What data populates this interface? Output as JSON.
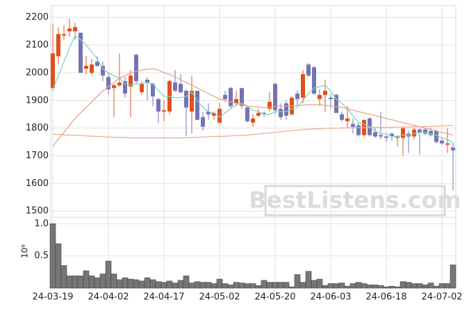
{
  "chart_data": {
    "type": "candlestick",
    "watermark": "BestListens.com",
    "categories": [
      "24-03-19",
      null,
      null,
      null,
      null,
      null,
      null,
      null,
      null,
      null,
      "24-04-02",
      null,
      null,
      null,
      null,
      null,
      null,
      null,
      null,
      null,
      "24-04-17",
      null,
      null,
      null,
      null,
      null,
      null,
      null,
      null,
      null,
      "24-05-02",
      null,
      null,
      null,
      null,
      null,
      null,
      null,
      null,
      null,
      "24-05-20",
      null,
      null,
      null,
      null,
      null,
      null,
      null,
      null,
      null,
      "24-06-03",
      null,
      null,
      null,
      null,
      null,
      null,
      null,
      null,
      null,
      "24-06-18",
      null,
      null,
      null,
      null,
      null,
      null,
      null,
      null,
      null,
      "24-07-02",
      null,
      null
    ],
    "open": [
      1945,
      2060,
      2135,
      2150,
      2150,
      2145,
      2015,
      2000,
      2040,
      2025,
      1985,
      1945,
      1955,
      1970,
      1950,
      2065,
      1930,
      1975,
      1960,
      1905,
      1860,
      1860,
      1965,
      1960,
      1935,
      1860,
      1935,
      1840,
      1860,
      1845,
      1820,
      1920,
      1945,
      1890,
      1945,
      1875,
      1820,
      1845,
      1855,
      1870,
      1960,
      1870,
      1890,
      1850,
      1925,
      1910,
      2030,
      2020,
      1905,
      1920,
      1910,
      1920,
      1850,
      1825,
      1815,
      1810,
      1775,
      1835,
      1785,
      1775,
      1770,
      1780,
      1765,
      1765,
      1780,
      1770,
      1795,
      1795,
      1790,
      1790,
      1755,
      1740,
      1730
    ],
    "high": [
      2175,
      2165,
      2170,
      2195,
      2180,
      2145,
      2060,
      2050,
      2060,
      2040,
      2000,
      1960,
      2070,
      1985,
      2010,
      2070,
      1970,
      1985,
      1965,
      1910,
      1900,
      1975,
      2010,
      1995,
      1940,
      1990,
      1935,
      1860,
      1890,
      1860,
      1890,
      1935,
      1950,
      1935,
      1945,
      1880,
      1850,
      1870,
      1860,
      1930,
      1965,
      1890,
      1900,
      1915,
      1935,
      2010,
      2035,
      2025,
      1940,
      1975,
      1925,
      1925,
      1860,
      1880,
      1835,
      1820,
      1830,
      1840,
      1800,
      1860,
      1775,
      1785,
      1775,
      1805,
      1790,
      1800,
      1800,
      1800,
      1800,
      1795,
      1765,
      1800,
      1745
    ],
    "low": [
      1935,
      2030,
      2120,
      2130,
      2120,
      2000,
      1995,
      1990,
      2020,
      1970,
      1920,
      1840,
      1950,
      1910,
      1840,
      1960,
      1920,
      1900,
      1880,
      1820,
      1825,
      1850,
      1930,
      1925,
      1770,
      1780,
      1830,
      1790,
      1830,
      1830,
      1815,
      1895,
      1870,
      1880,
      1870,
      1820,
      1805,
      1840,
      1840,
      1860,
      1850,
      1830,
      1830,
      1845,
      1880,
      1890,
      1985,
      1920,
      1880,
      1860,
      1870,
      1855,
      1825,
      1800,
      1780,
      1770,
      1770,
      1770,
      1765,
      1760,
      1750,
      1755,
      1735,
      1700,
      1710,
      1760,
      1705,
      1775,
      1770,
      1745,
      1740,
      1710,
      1575
    ],
    "close": [
      2070,
      2140,
      2140,
      2160,
      2165,
      2000,
      2025,
      2030,
      2025,
      1990,
      1940,
      1955,
      1965,
      1925,
      1990,
      1970,
      1960,
      1965,
      1915,
      1860,
      1865,
      1970,
      1935,
      1930,
      1875,
      1935,
      1830,
      1805,
      1850,
      1855,
      1870,
      1905,
      1880,
      1905,
      1880,
      1825,
      1835,
      1855,
      1850,
      1895,
      1865,
      1840,
      1845,
      1910,
      1905,
      1995,
      1990,
      1925,
      1920,
      1935,
      1905,
      1855,
      1830,
      1835,
      1805,
      1775,
      1830,
      1775,
      1770,
      1770,
      1765,
      1770,
      1770,
      1800,
      1770,
      1795,
      1785,
      1780,
      1775,
      1750,
      1745,
      1745,
      1720
    ],
    "volume": [
      1.0,
      0.69,
      0.35,
      0.19,
      0.19,
      0.19,
      0.27,
      0.19,
      0.16,
      0.22,
      0.42,
      0.22,
      0.13,
      0.16,
      0.14,
      0.13,
      0.11,
      0.16,
      0.13,
      0.1,
      0.09,
      0.11,
      0.08,
      0.12,
      0.19,
      0.08,
      0.1,
      0.09,
      0.09,
      0.07,
      0.14,
      0.07,
      0.05,
      0.09,
      0.08,
      0.07,
      0.07,
      0.04,
      0.12,
      0.09,
      0.09,
      0.09,
      0.09,
      0.02,
      0.21,
      0.09,
      0.26,
      0.12,
      0.14,
      0.04,
      0.07,
      0.07,
      0.08,
      0.03,
      0.07,
      0.09,
      0.07,
      0.05,
      0.05,
      0.04,
      0.02,
      0.03,
      0.02,
      0.1,
      0.09,
      0.07,
      0.07,
      0.05,
      0.08,
      0.03,
      0.07,
      0.07,
      0.36
    ],
    "up_color": "#e0501c",
    "down_color": "#7473b5",
    "volume_color": "#767676",
    "series": [
      {
        "color": "#7fd6be",
        "values": [
          1940,
          1990,
          2040,
          2090,
          2135,
          2120,
          2100,
          2075,
          2050,
          2015,
          2000,
          1990,
          1980,
          1960,
          1955,
          1960,
          1960,
          1965,
          1960,
          1935,
          1915,
          1915,
          1910,
          1910,
          1915,
          1930,
          1900,
          1875,
          1860,
          1855,
          1840,
          1855,
          1870,
          1885,
          1890,
          1880,
          1865,
          1860,
          1850,
          1850,
          1860,
          1860,
          1860,
          1870,
          1875,
          1900,
          1925,
          1945,
          1950,
          1955,
          1935,
          1905,
          1890,
          1870,
          1845,
          1820,
          1815,
          1805,
          1790,
          1780,
          1780,
          1770,
          1770,
          1775,
          1775,
          1780,
          1785,
          1785,
          1780,
          1775,
          1765,
          1760,
          1745
        ]
      },
      {
        "color": "#eaa584",
        "values": [
          1735,
          1760,
          1785,
          1810,
          1835,
          1855,
          1875,
          1895,
          1915,
          1935,
          1950,
          1965,
          1980,
          1990,
          2000,
          2005,
          2010,
          2013,
          2015,
          2010,
          2000,
          1995,
          1985,
          1975,
          1965,
          1955,
          1945,
          1935,
          1925,
          1915,
          1905,
          1900,
          1895,
          1890,
          1885,
          1880,
          1878,
          1876,
          1875,
          1875,
          1878,
          1880,
          1880,
          1880,
          1882,
          1883,
          1885,
          1885,
          1885,
          1883,
          1880,
          1878,
          1875,
          1870,
          1865,
          1860,
          1855,
          1850,
          1845,
          1840,
          1835,
          1830,
          1825,
          1820,
          1815,
          1810,
          1805,
          1800,
          1795,
          1790,
          1785,
          1780,
          1775
        ]
      },
      {
        "color": "#eab094",
        "values": [
          1778,
          1777,
          1776,
          1775,
          1774,
          1773,
          1772,
          1771,
          1770,
          1769,
          1768,
          1767,
          1766,
          1766,
          1765,
          1765,
          1765,
          1765,
          1765,
          1765,
          1765,
          1765,
          1765,
          1765,
          1765,
          1766,
          1767,
          1768,
          1769,
          1770,
          1770,
          1771,
          1772,
          1773,
          1774,
          1775,
          1777,
          1779,
          1781,
          1783,
          1785,
          1787,
          1789,
          1791,
          1793,
          1795,
          1796,
          1797,
          1798,
          1799,
          1800,
          1800,
          1801,
          1801,
          1802,
          1802,
          1802,
          1802,
          1803,
          1803,
          1803,
          1803,
          1804,
          1804,
          1804,
          1805,
          1805,
          1806,
          1806,
          1807,
          1808,
          1809,
          1810
        ]
      }
    ],
    "ylim": [
      1478,
      2243
    ],
    "yticks": [
      1500,
      1600,
      1700,
      1800,
      1900,
      2000,
      2100,
      2200
    ],
    "volume_label": "10⁶",
    "volume_ylim": [
      0,
      1.1
    ],
    "volume_yticks": [
      0.5,
      {
        "value": 1,
        "label": "1.0"
      }
    ],
    "grid": true
  }
}
